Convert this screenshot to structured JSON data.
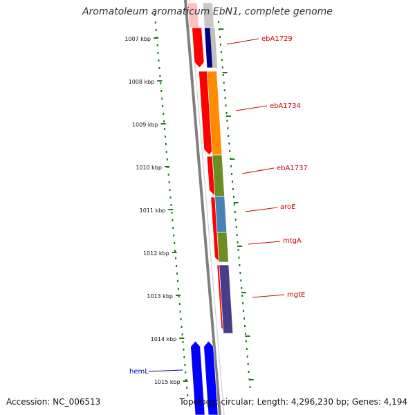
{
  "title": "Aromatoleum aromaticum EbN1, complete genome",
  "accession": "Accession: NC_006513",
  "summary": "Topology: circular; Length: 4,296,230 bp; Genes: 4,194",
  "colors": {
    "backbone": "#808080",
    "forward": "#ff0000",
    "forward_faded": "#ffc0c0",
    "tick": "#1a7a1a",
    "gene_label": "#cc0000",
    "hemL_label": "#0000aa",
    "reverse_blue": "#0000ff"
  },
  "ticks": [
    {
      "label": "1007 kbp"
    },
    {
      "label": "1008 kbp"
    },
    {
      "label": "1009 kbp"
    },
    {
      "label": "1010 kbp"
    },
    {
      "label": "1011 kbp"
    },
    {
      "label": "1012 kbp"
    },
    {
      "label": "1013 kbp"
    },
    {
      "label": "1014 kbp"
    },
    {
      "label": "1015 kbp"
    }
  ],
  "gene_labels": [
    {
      "name": "ebA1729"
    },
    {
      "name": "ebA1734"
    },
    {
      "name": "ebA1737"
    },
    {
      "name": "aroE"
    },
    {
      "name": "mtgA"
    },
    {
      "name": "mgtE"
    },
    {
      "name": "hemL"
    }
  ],
  "cog_colors": [
    {
      "gene": "ebA1729",
      "color": "#000080"
    },
    {
      "gene": "ebA1734",
      "color": "#ff8c00"
    },
    {
      "gene": "ebA1737",
      "color": "#6b8e23"
    },
    {
      "gene": "aroE",
      "color": "#4682b4"
    },
    {
      "gene": "mtgA",
      "color": "#6b8e23"
    },
    {
      "gene": "mgtE",
      "color": "#483d8b"
    }
  ]
}
